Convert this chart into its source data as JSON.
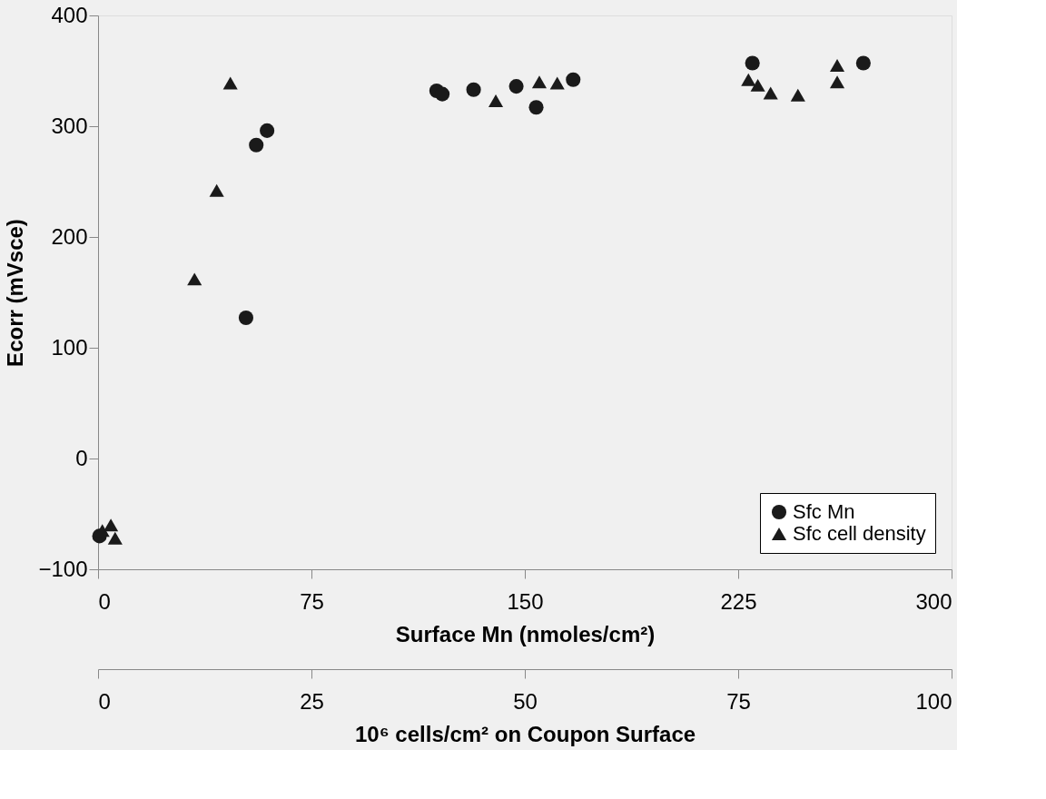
{
  "chart_data": {
    "type": "scatter",
    "xlabel": "Surface Mn (nmoles/cm²)",
    "x2label": "10⁶ cells/cm² on Coupon Surface",
    "ylabel": "Ecorr (mVsce)",
    "xlim": [
      0,
      300
    ],
    "xticks": [
      0,
      75,
      150,
      225,
      300
    ],
    "x2lim": [
      0,
      100
    ],
    "x2ticks": [
      0,
      25,
      50,
      75,
      100
    ],
    "ylim": [
      -100,
      400
    ],
    "yticks": [
      -100,
      0,
      100,
      200,
      300,
      400
    ],
    "grid": false,
    "legend": "bottom right",
    "series": [
      {
        "name": "Sfc Mn",
        "color": "#1a1a1a",
        "marker": "circle",
        "x": [
          0.5,
          52,
          55.6,
          59.4,
          119,
          121,
          132,
          147,
          154,
          167,
          230,
          269
        ],
        "values": [
          -70,
          127,
          283,
          296,
          332,
          329,
          333,
          336,
          317,
          342,
          357,
          357
        ]
      },
      {
        "name": "Sfc cell density",
        "color": "#1a1a1a",
        "marker": "triangle",
        "axis": "x2",
        "x": [
          0.5,
          1.5,
          2,
          11.3,
          13.9,
          15.5,
          46.6,
          51.7,
          53.8,
          76.2,
          77.3,
          78.8,
          82.0,
          86.6,
          86.6
        ],
        "values": [
          -65,
          -60,
          -72,
          162,
          242,
          339,
          323,
          340,
          339,
          342,
          337,
          330,
          328,
          355,
          340
        ]
      }
    ]
  }
}
